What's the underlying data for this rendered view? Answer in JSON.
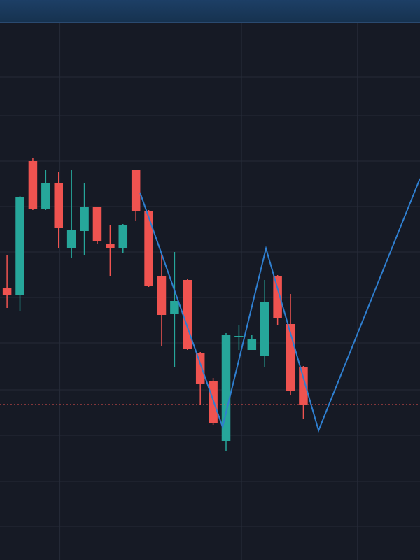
{
  "chart_data": {
    "type": "candlestick",
    "x": [
      0,
      1,
      2,
      3,
      4,
      5,
      6,
      7,
      8,
      9,
      10,
      11,
      12,
      13,
      14,
      15,
      16,
      17,
      18,
      19,
      20,
      21,
      22,
      23
    ],
    "open": [
      38.8,
      37.8,
      57,
      50.2,
      53.8,
      44.5,
      47,
      50.4,
      45.2,
      44.5,
      55.7,
      49.8,
      40.5,
      35.2,
      40,
      29.5,
      25.5,
      17,
      31.9,
      30,
      29.2,
      40.5,
      33.7,
      27.5
    ],
    "high": [
      43.5,
      52,
      57.5,
      55.7,
      55.5,
      55.7,
      53.8,
      50.5,
      47.8,
      48,
      55.7,
      50,
      44,
      44,
      40.2,
      29.7,
      26,
      32.4,
      33.5,
      32.2,
      40,
      40.7,
      38,
      27.7
    ],
    "low": [
      36,
      35.5,
      50,
      50,
      44.5,
      43.2,
      43.5,
      45.2,
      40.5,
      43.8,
      48.5,
      39,
      30.5,
      27.5,
      30,
      22.2,
      19.3,
      15.5,
      30,
      30,
      27.5,
      33.5,
      23.5,
      20.2
    ],
    "close": [
      37.8,
      51.8,
      50.2,
      53.8,
      47.5,
      47.2,
      50.4,
      45.5,
      44.5,
      47.8,
      49.8,
      39.2,
      35,
      37,
      30.2,
      25.2,
      19.5,
      32.2,
      32,
      31.5,
      36.8,
      34.5,
      24.2,
      22.2
    ],
    "up_color": "#26a69a",
    "down_color": "#ef5350",
    "line": {
      "color": "#2f7fd0",
      "x": [
        10.32,
        16.73,
        20.1,
        24.18,
        32.05
      ],
      "values": [
        52.5,
        19,
        44.5,
        18.5,
        54.5
      ]
    },
    "hline": {
      "value": 22.2,
      "color": "#ef5350"
    },
    "xlim": [
      -0.55,
      32.05
    ],
    "xticks": [
      4.1,
      18.2,
      27.2
    ],
    "ylim": [
      0,
      80
    ],
    "yticks": [
      69,
      63.5,
      57,
      50.5,
      44,
      37.5,
      31,
      24.3,
      17.8,
      11.2,
      4.8
    ],
    "grid": true
  }
}
